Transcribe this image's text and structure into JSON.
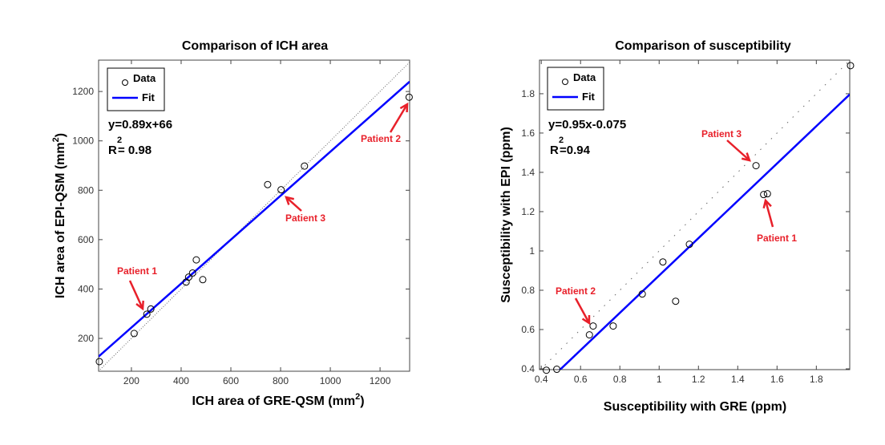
{
  "chart_data": [
    {
      "type": "scatter",
      "title": "Comparison of ICH area",
      "xlabel": "ICH area of GRE-QSM (mm",
      "xlabel_sup": "2",
      "xlabel_end": ")",
      "ylabel": "ICH area of EPI-QSM (mm",
      "ylabel_sup": "2",
      "ylabel_end": ")",
      "xlim": [
        68,
        1319
      ],
      "ylim": [
        67,
        1327
      ],
      "xticks": [
        200,
        400,
        600,
        800,
        1000,
        1200
      ],
      "xtick_labels": [
        "200",
        "400",
        "600",
        "800",
        "1000",
        "1200"
      ],
      "yticks": [
        200,
        400,
        600,
        800,
        1000,
        1200
      ],
      "ytick_labels": [
        "200",
        "400",
        "600",
        "800",
        "1000",
        "1200"
      ],
      "legend": {
        "placement": "top-left",
        "entries": [
          "Data",
          "Fit"
        ]
      },
      "equation": "y=0.89x+66",
      "r2_label": "R",
      "r2_sup": "2",
      "r2_value": "= 0.98",
      "fit": {
        "slope": 0.89,
        "intercept": 66,
        "color": "#0000ff"
      },
      "identity_line": true,
      "points": [
        [
          71,
          106
        ],
        [
          211,
          220
        ],
        [
          262,
          298
        ],
        [
          278,
          319
        ],
        [
          420,
          428
        ],
        [
          430,
          448
        ],
        [
          446,
          465
        ],
        [
          461,
          518
        ],
        [
          487,
          438
        ],
        [
          748,
          823
        ],
        [
          802,
          802
        ],
        [
          896,
          898
        ],
        [
          1317,
          1177
        ]
      ],
      "annotations": [
        "Patient 1",
        "Patient 2",
        "Patient 3"
      ],
      "annotation_color": "#e8202a"
    },
    {
      "type": "scatter",
      "title": "Comparison of susceptibility",
      "xlabel": "Susceptibility  with GRE (ppm)",
      "ylabel": "Susceptibility with EPI (ppm)",
      "xlim": [
        0.391,
        1.97
      ],
      "ylim": [
        0.396,
        1.971
      ],
      "xticks": [
        0.4,
        0.6,
        0.8,
        1.0,
        1.2,
        1.4,
        1.6,
        1.8
      ],
      "xtick_labels": [
        "0.4",
        "0.6",
        "0.8",
        "1",
        "1.2",
        "1.4",
        "1.6",
        "1.8"
      ],
      "yticks": [
        0.4,
        0.6,
        0.8,
        1.0,
        1.2,
        1.4,
        1.6,
        1.8
      ],
      "ytick_labels": [
        "0.4",
        "0.6",
        "0.8",
        "1",
        "1.2",
        "1.4",
        "1.6",
        "1.8"
      ],
      "legend": {
        "placement": "top-left",
        "entries": [
          "Data",
          "Fit"
        ]
      },
      "equation": "y=0.95x-0.075",
      "r2_label": "R",
      "r2_sup": "2",
      "r2_value": "=0.94",
      "fit": {
        "slope": 0.95,
        "intercept": -0.075,
        "color": "#0000ff"
      },
      "identity_line": true,
      "points": [
        [
          0.426,
          0.393
        ],
        [
          0.479,
          0.398
        ],
        [
          0.645,
          0.573
        ],
        [
          0.664,
          0.618
        ],
        [
          0.766,
          0.618
        ],
        [
          0.914,
          0.781
        ],
        [
          1.019,
          0.944
        ],
        [
          1.084,
          0.744
        ],
        [
          1.154,
          1.034
        ],
        [
          1.493,
          1.434
        ],
        [
          1.532,
          1.287
        ],
        [
          1.551,
          1.291
        ],
        [
          1.974,
          1.943
        ]
      ],
      "annotations": [
        "Patient 3",
        "Patient 1",
        "Patient 2"
      ],
      "annotation_color": "#e8202a"
    }
  ]
}
